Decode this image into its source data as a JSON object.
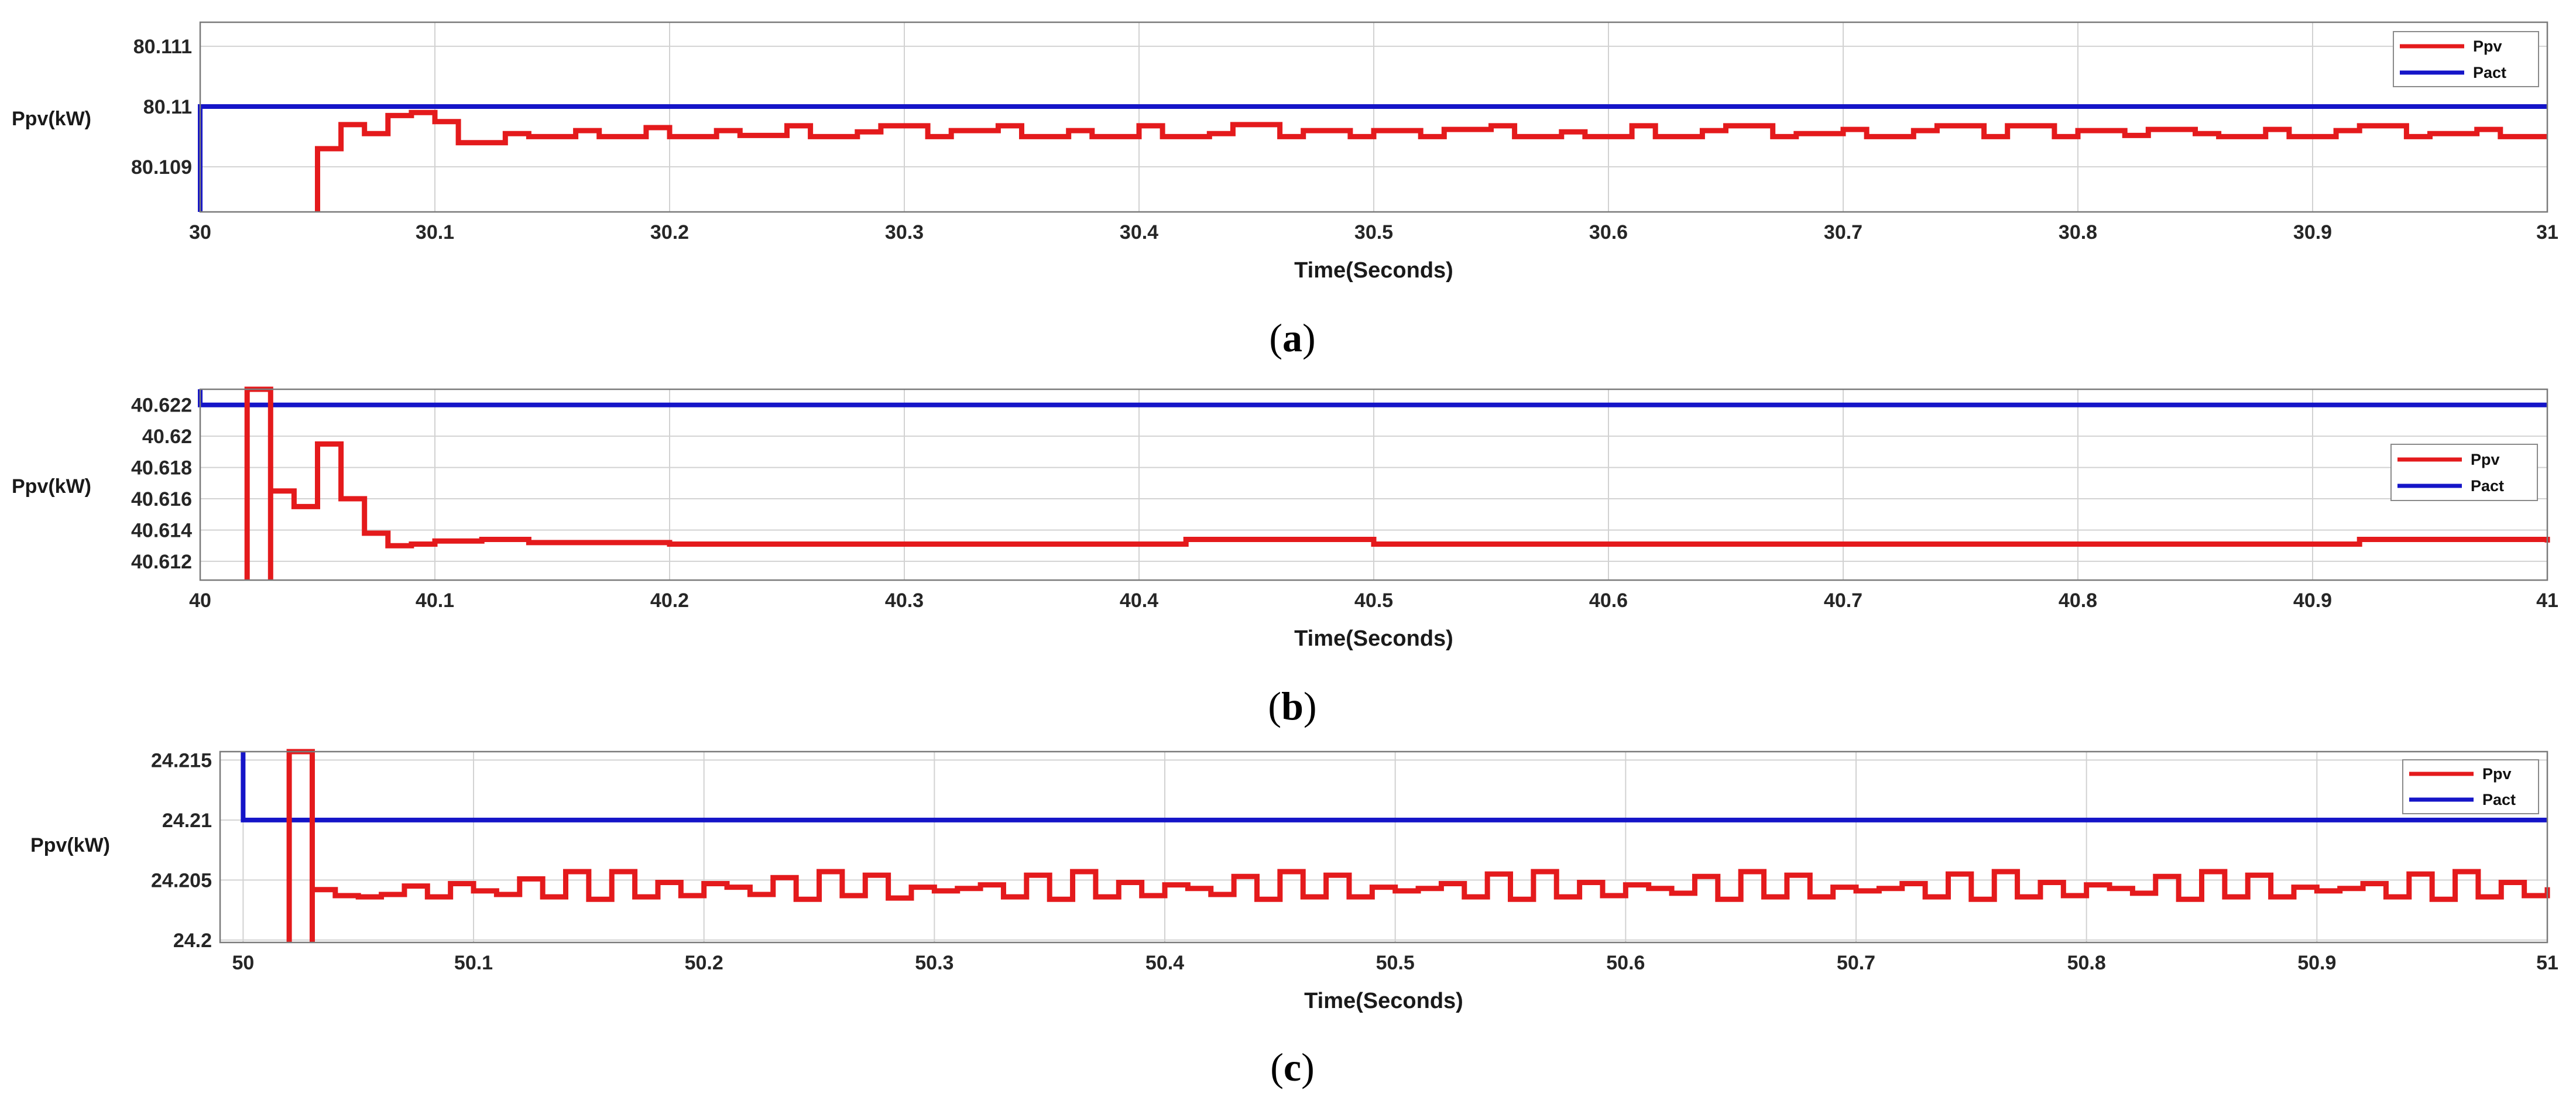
{
  "colors": {
    "ppv": "#e41a1c",
    "pact": "#1515c8",
    "grid": "#d2d2d2",
    "frame": "#7a7a7a"
  },
  "chart_data": [
    {
      "type": "line",
      "caption": "a",
      "xlabel": "Time(Seconds)",
      "ylabel": "Ppv(kW)",
      "xlim": [
        30,
        31
      ],
      "ylim": [
        80.10825,
        80.1114
      ],
      "xticks": [
        30,
        30.1,
        30.2,
        30.3,
        30.4,
        30.5,
        30.6,
        30.7,
        30.8,
        30.9,
        31
      ],
      "xtick_labels": [
        "30",
        "30.1",
        "30.2",
        "30.3",
        "30.4",
        "30.5",
        "30.6",
        "30.7",
        "30.8",
        "30.9",
        "31"
      ],
      "yticks": [
        80.109,
        80.11,
        80.111
      ],
      "ytick_labels": [
        "80.109",
        "80.11",
        "80.111"
      ],
      "legend": [
        "Ppv",
        "Pact"
      ],
      "legend_position": "top-right",
      "series": [
        {
          "name": "Pact",
          "color": "#1515c8",
          "x": [
            30.0,
            30.0,
            31.0
          ],
          "y": [
            80.10825,
            80.11,
            80.11
          ]
        },
        {
          "name": "Ppv",
          "color": "#e41a1c",
          "step": true,
          "x": [
            30.05,
            30.05,
            30.06,
            30.07,
            30.08,
            30.09,
            30.1,
            30.11,
            30.13,
            30.14,
            30.16,
            30.17,
            30.19,
            30.2,
            30.22,
            30.23,
            30.25,
            30.26,
            30.28,
            30.29,
            30.31,
            30.32,
            30.34,
            30.35,
            30.37,
            30.38,
            30.4,
            30.41,
            30.43,
            30.44,
            30.46,
            30.47,
            30.49,
            30.5,
            30.52,
            30.53,
            30.55,
            30.56,
            30.58,
            30.59,
            30.61,
            30.62,
            30.64,
            30.65,
            30.67,
            30.68,
            30.7,
            30.71,
            30.73,
            30.74,
            30.76,
            30.77,
            30.79,
            30.8,
            30.82,
            30.83,
            30.85,
            30.86,
            30.88,
            30.89,
            30.91,
            30.92,
            30.94,
            30.95,
            30.97,
            30.98,
            31.0
          ],
          "y": [
            80.10825,
            80.1093,
            80.1097,
            80.10955,
            80.10985,
            80.1099,
            80.10975,
            80.1094,
            80.10955,
            80.1095,
            80.1096,
            80.1095,
            80.10965,
            80.1095,
            80.1096,
            80.10952,
            80.10968,
            80.1095,
            80.10958,
            80.10968,
            80.1095,
            80.1096,
            80.10968,
            80.1095,
            80.1096,
            80.1095,
            80.10968,
            80.1095,
            80.10955,
            80.1097,
            80.1095,
            80.1096,
            80.1095,
            80.1096,
            80.1095,
            80.10962,
            80.10968,
            80.1095,
            80.10958,
            80.1095,
            80.10968,
            80.1095,
            80.1096,
            80.10968,
            80.1095,
            80.10955,
            80.10962,
            80.1095,
            80.1096,
            80.10968,
            80.1095,
            80.10968,
            80.1095,
            80.1096,
            80.10952,
            80.10962,
            80.10955,
            80.1095,
            80.10962,
            80.1095,
            80.1096,
            80.10968,
            80.1095,
            80.10955,
            80.10962,
            80.1095,
            80.1095
          ]
        }
      ]
    },
    {
      "type": "line",
      "caption": "b",
      "xlabel": "Time(Seconds)",
      "ylabel": "Ppv(kW)",
      "xlim": [
        40,
        41
      ],
      "ylim": [
        40.6108,
        40.623
      ],
      "xticks": [
        40,
        40.1,
        40.2,
        40.3,
        40.4,
        40.5,
        40.6,
        40.7,
        40.8,
        40.9,
        41
      ],
      "xtick_labels": [
        "40",
        "40.1",
        "40.2",
        "40.3",
        "40.4",
        "40.5",
        "40.6",
        "40.7",
        "40.8",
        "40.9",
        "41"
      ],
      "yticks": [
        40.612,
        40.614,
        40.616,
        40.618,
        40.62,
        40.622
      ],
      "ytick_labels": [
        "40.612",
        "40.614",
        "40.616",
        "40.618",
        "40.62",
        "40.622"
      ],
      "legend": [
        "Ppv",
        "Pact"
      ],
      "legend_position": "middle-right",
      "series": [
        {
          "name": "Pact",
          "color": "#1515c8",
          "x": [
            40.0,
            40.0,
            41.0
          ],
          "y": [
            40.623,
            40.622,
            40.622
          ]
        },
        {
          "name": "Ppv",
          "color": "#e41a1c",
          "step": true,
          "x": [
            40.02,
            40.02,
            40.03,
            40.03,
            40.04,
            40.05,
            40.06,
            40.07,
            40.08,
            40.09,
            40.1,
            40.12,
            40.14,
            40.2,
            40.3,
            40.42,
            40.5,
            40.6,
            40.7,
            40.8,
            40.92,
            41.0
          ],
          "y": [
            40.6108,
            40.623,
            40.6108,
            40.6165,
            40.6155,
            40.6195,
            40.616,
            40.6138,
            40.613,
            40.6131,
            40.6133,
            40.6134,
            40.6132,
            40.6131,
            40.6131,
            40.6134,
            40.6131,
            40.6131,
            40.6131,
            40.6131,
            40.6134,
            40.6132
          ]
        }
      ]
    },
    {
      "type": "line",
      "caption": "c",
      "xlabel": "Time(Seconds)",
      "ylabel": "Ppv(kW)",
      "xlim": [
        49.99,
        51
      ],
      "ylim": [
        24.1998,
        24.2157
      ],
      "xticks": [
        50,
        50.1,
        50.2,
        50.3,
        50.4,
        50.5,
        50.6,
        50.7,
        50.8,
        50.9,
        51
      ],
      "xtick_labels": [
        "50",
        "50.1",
        "50.2",
        "50.3",
        "50.4",
        "50.5",
        "50.6",
        "50.7",
        "50.8",
        "50.9",
        "51"
      ],
      "yticks": [
        24.2,
        24.205,
        24.21,
        24.215
      ],
      "ytick_labels": [
        "24.2",
        "24.205",
        "24.21",
        "24.215"
      ],
      "legend": [
        "Ppv",
        "Pact"
      ],
      "legend_position": "top-right",
      "series": [
        {
          "name": "Pact",
          "color": "#1515c8",
          "x": [
            50.0,
            50.0,
            51.0
          ],
          "y": [
            24.2157,
            24.21,
            24.21
          ]
        },
        {
          "name": "Ppv",
          "color": "#e41a1c",
          "step": true,
          "x": [
            50.02,
            50.02,
            50.03,
            50.03,
            50.04,
            50.05,
            50.06,
            50.07,
            50.08,
            50.09,
            50.1,
            50.11,
            50.12,
            50.13,
            50.14,
            50.15,
            50.16,
            50.17,
            50.18,
            50.19,
            50.2,
            50.21,
            50.22,
            50.23,
            50.24,
            50.25,
            50.26,
            50.27,
            50.28,
            50.29,
            50.3,
            50.31,
            50.32,
            50.33,
            50.34,
            50.35,
            50.36,
            50.37,
            50.38,
            50.39,
            50.4,
            50.41,
            50.42,
            50.43,
            50.44,
            50.45,
            50.46,
            50.47,
            50.48,
            50.49,
            50.5,
            50.51,
            50.52,
            50.53,
            50.54,
            50.55,
            50.56,
            50.57,
            50.58,
            50.59,
            50.6,
            50.61,
            50.62,
            50.63,
            50.64,
            50.65,
            50.66,
            50.67,
            50.68,
            50.69,
            50.7,
            50.71,
            50.72,
            50.73,
            50.74,
            50.75,
            50.76,
            50.77,
            50.78,
            50.79,
            50.8,
            50.81,
            50.82,
            50.83,
            50.84,
            50.85,
            50.86,
            50.87,
            50.88,
            50.89,
            50.9,
            50.91,
            50.92,
            50.93,
            50.94,
            50.95,
            50.96,
            50.97,
            50.98,
            50.99,
            51.0
          ],
          "y": [
            24.1998,
            24.2157,
            24.1998,
            24.2042,
            24.2037,
            24.2036,
            24.2038,
            24.2045,
            24.2036,
            24.2047,
            24.2041,
            24.2038,
            24.2051,
            24.2036,
            24.2057,
            24.2034,
            24.2057,
            24.2036,
            24.2048,
            24.2037,
            24.2047,
            24.2044,
            24.2038,
            24.2052,
            24.2034,
            24.2057,
            24.2037,
            24.2054,
            24.2035,
            24.2044,
            24.2041,
            24.2043,
            24.2046,
            24.2036,
            24.2054,
            24.2034,
            24.2057,
            24.2036,
            24.2048,
            24.2037,
            24.2046,
            24.2043,
            24.2038,
            24.2053,
            24.2034,
            24.2057,
            24.2036,
            24.2054,
            24.2036,
            24.2044,
            24.2041,
            24.2043,
            24.2047,
            24.2036,
            24.2055,
            24.2034,
            24.2057,
            24.2036,
            24.2048,
            24.2037,
            24.2046,
            24.2043,
            24.2039,
            24.2053,
            24.2034,
            24.2057,
            24.2036,
            24.2054,
            24.2036,
            24.2044,
            24.2041,
            24.2043,
            24.2047,
            24.2036,
            24.2055,
            24.2034,
            24.2057,
            24.2036,
            24.2048,
            24.2037,
            24.2046,
            24.2043,
            24.2039,
            24.2053,
            24.2034,
            24.2057,
            24.2036,
            24.2054,
            24.2036,
            24.2044,
            24.2041,
            24.2043,
            24.2047,
            24.2036,
            24.2055,
            24.2034,
            24.2057,
            24.2036,
            24.2048,
            24.2037,
            24.2044
          ]
        }
      ]
    }
  ]
}
